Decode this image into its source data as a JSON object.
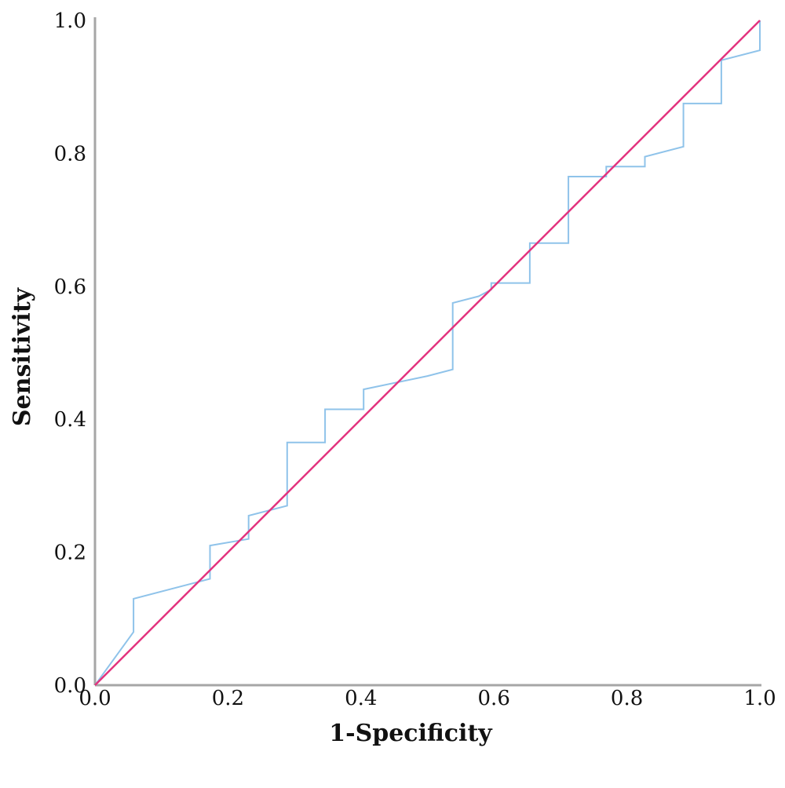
{
  "chart_data": {
    "type": "line",
    "title": "",
    "xlabel": "1-Specificity",
    "ylabel": "Sensitivity",
    "xlim": [
      0,
      1
    ],
    "ylim": [
      0,
      1
    ],
    "x_ticks": [
      "0.0",
      "0.2",
      "0.4",
      "0.6",
      "0.8",
      "1.0"
    ],
    "y_ticks": [
      "0.0",
      "0.2",
      "0.4",
      "0.6",
      "0.8",
      "1.0"
    ],
    "grid": false,
    "legend": "none",
    "series": [
      {
        "color": "#8fc3ea",
        "x": [
          0,
          0.058,
          0.058,
          0.173,
          0.173,
          0.231,
          0.231,
          0.289,
          0.289,
          0.346,
          0.346,
          0.404,
          0.404,
          0.5,
          0.5,
          0.538,
          0.538,
          0.577,
          0.596,
          0.596,
          0.654,
          0.654,
          0.712,
          0.712,
          0.769,
          0.769,
          0.827,
          0.827,
          0.885,
          0.885,
          0.942,
          0.942,
          1.0,
          1.0
        ],
        "y": [
          0,
          0.08,
          0.13,
          0.16,
          0.21,
          0.22,
          0.255,
          0.27,
          0.365,
          0.365,
          0.415,
          0.415,
          0.445,
          0.465,
          0.465,
          0.475,
          0.575,
          0.585,
          0.595,
          0.605,
          0.605,
          0.665,
          0.665,
          0.765,
          0.765,
          0.78,
          0.78,
          0.795,
          0.81,
          0.875,
          0.875,
          0.94,
          0.955,
          1.0
        ]
      },
      {
        "color": "#e3337e",
        "x": [
          0,
          1
        ],
        "y": [
          0,
          1
        ]
      }
    ],
    "axis_color": "#a6a6a6"
  }
}
